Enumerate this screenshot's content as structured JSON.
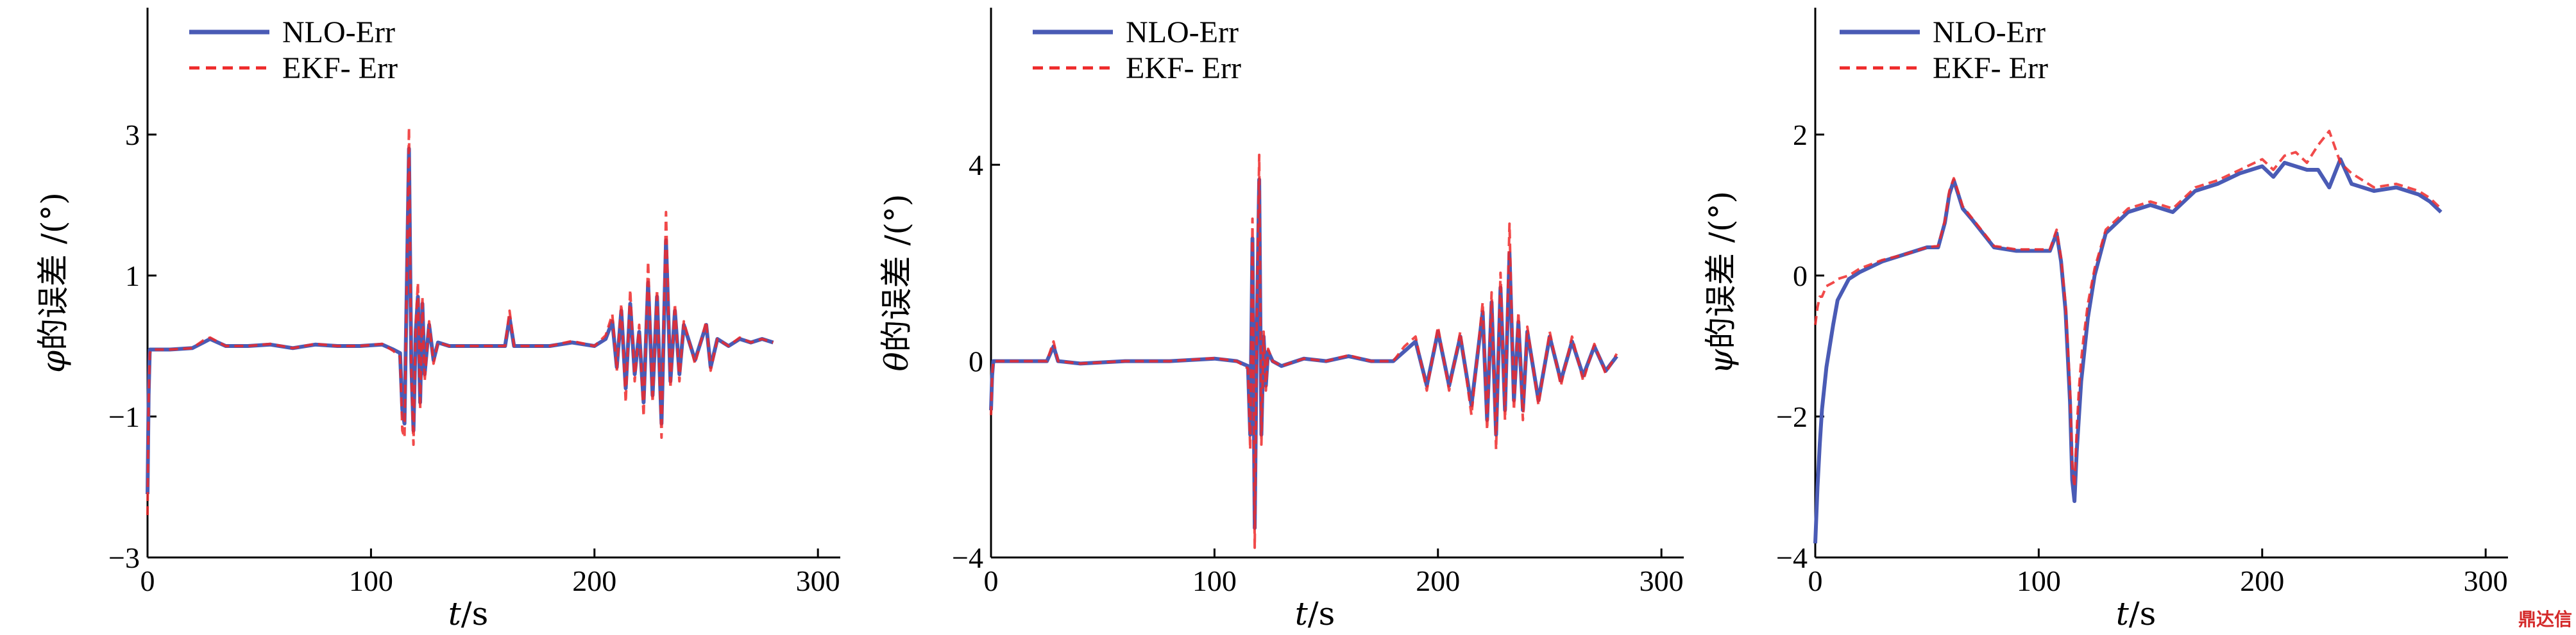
{
  "colors": {
    "nlo": "#4a5bb5",
    "ekf": "#ee2a2a"
  },
  "watermark": "鼎达信",
  "chart_data": [
    {
      "type": "line",
      "panel": "phi",
      "ylabel": "φ的误差 /(°)",
      "xlabel": "t/s",
      "xlim": [
        0,
        310
      ],
      "ylim": [
        -3,
        4.8
      ],
      "xticks": [
        0,
        100,
        200,
        300
      ],
      "yticks": [
        -3,
        -1,
        1,
        3
      ],
      "legend": {
        "position": "top-left",
        "entries": [
          "NLO-Err",
          "EKF- Err"
        ]
      },
      "series": [
        {
          "name": "NLO-Err",
          "style": "solid",
          "x": [
            0,
            0.5,
            1,
            2,
            5,
            10,
            20,
            25,
            28,
            35,
            45,
            55,
            65,
            75,
            85,
            95,
            105,
            110,
            113,
            114,
            115,
            116,
            117,
            118,
            119,
            120,
            121,
            122,
            123,
            124,
            126,
            128,
            130,
            135,
            145,
            155,
            160,
            162,
            164,
            170,
            180,
            190,
            200,
            205,
            208,
            210,
            212,
            214,
            216,
            218,
            220,
            222,
            224,
            226,
            228,
            230,
            232,
            234,
            236,
            238,
            240,
            245,
            250,
            252,
            255,
            260,
            265,
            270,
            275,
            280
          ],
          "y": [
            -2.1,
            -0.7,
            -0.05,
            -0.05,
            -0.05,
            -0.05,
            -0.03,
            0.05,
            0.1,
            0.0,
            0.0,
            0.02,
            -0.03,
            0.02,
            0.0,
            0.0,
            0.02,
            -0.05,
            -0.1,
            -0.9,
            -1.1,
            0.8,
            2.8,
            -0.2,
            -1.2,
            0.2,
            0.7,
            -0.8,
            0.6,
            -0.4,
            0.3,
            -0.2,
            0.05,
            0.0,
            0.0,
            0.0,
            0.0,
            0.4,
            0.0,
            0.0,
            0.0,
            0.05,
            0.0,
            0.1,
            0.35,
            -0.3,
            0.5,
            -0.6,
            0.6,
            -0.4,
            0.2,
            -0.8,
            0.9,
            -0.7,
            0.7,
            -1.1,
            1.5,
            -0.5,
            0.5,
            -0.4,
            0.3,
            -0.2,
            0.3,
            -0.3,
            0.1,
            0.0,
            0.1,
            0.05,
            0.1,
            0.05
          ]
        },
        {
          "name": "EKF- Err",
          "style": "dashed",
          "x": [
            0,
            0.5,
            1,
            2,
            5,
            10,
            20,
            25,
            28,
            35,
            45,
            55,
            65,
            75,
            85,
            95,
            105,
            110,
            113,
            114,
            115,
            116,
            117,
            118,
            119,
            120,
            121,
            122,
            123,
            124,
            126,
            128,
            130,
            135,
            145,
            155,
            160,
            162,
            164,
            170,
            180,
            190,
            200,
            205,
            208,
            210,
            212,
            214,
            216,
            218,
            220,
            222,
            224,
            226,
            228,
            230,
            232,
            234,
            236,
            238,
            240,
            245,
            250,
            252,
            255,
            260,
            265,
            270,
            275,
            280
          ],
          "y": [
            -2.4,
            -0.8,
            -0.1,
            -0.05,
            -0.05,
            -0.05,
            -0.03,
            0.08,
            0.12,
            0.0,
            0.0,
            0.03,
            -0.03,
            0.03,
            0.0,
            0.0,
            0.03,
            -0.07,
            -0.15,
            -1.2,
            -1.3,
            0.9,
            3.1,
            -0.3,
            -1.4,
            0.3,
            0.9,
            -0.9,
            0.7,
            -0.5,
            0.35,
            -0.25,
            0.05,
            0.0,
            0.0,
            0.0,
            0.0,
            0.5,
            0.0,
            0.0,
            0.0,
            0.07,
            0.0,
            0.15,
            0.45,
            -0.35,
            0.6,
            -0.8,
            0.8,
            -0.5,
            0.3,
            -1.0,
            1.2,
            -0.8,
            0.8,
            -1.3,
            1.9,
            -0.6,
            0.6,
            -0.5,
            0.35,
            -0.25,
            0.35,
            -0.35,
            0.1,
            0.0,
            0.12,
            0.05,
            0.1,
            0.05
          ]
        }
      ]
    },
    {
      "type": "line",
      "panel": "theta",
      "ylabel": "θ的误差 /(°)",
      "xlabel": "t/s",
      "xlim": [
        0,
        310
      ],
      "ylim": [
        -4,
        7.2
      ],
      "xticks": [
        0,
        100,
        200,
        300
      ],
      "yticks": [
        -4,
        0,
        4
      ],
      "legend": {
        "position": "top-left",
        "entries": [
          "NLO-Err",
          "EKF- Err"
        ]
      },
      "series": [
        {
          "name": "NLO-Err",
          "style": "solid",
          "x": [
            0,
            0.5,
            1,
            5,
            15,
            25,
            28,
            30,
            40,
            60,
            80,
            100,
            110,
            115,
            116,
            117,
            118,
            119,
            120,
            121,
            122,
            123,
            124,
            126,
            130,
            140,
            150,
            160,
            170,
            180,
            185,
            190,
            195,
            200,
            205,
            210,
            215,
            220,
            222,
            224,
            226,
            228,
            230,
            232,
            234,
            236,
            238,
            240,
            245,
            250,
            255,
            260,
            265,
            270,
            275,
            280
          ],
          "y": [
            -1.0,
            -0.3,
            0.0,
            0.0,
            0.0,
            0.0,
            0.3,
            0.0,
            -0.05,
            0.0,
            0.0,
            0.05,
            0.0,
            -0.1,
            -1.5,
            2.5,
            -3.4,
            0.8,
            3.7,
            -1.5,
            0.5,
            -0.5,
            0.2,
            0.0,
            -0.1,
            0.05,
            0.0,
            0.1,
            0.0,
            0.0,
            0.2,
            0.4,
            -0.5,
            0.6,
            -0.5,
            0.5,
            -0.9,
            1.0,
            -1.2,
            1.2,
            -1.5,
            1.5,
            -1.0,
            2.2,
            -0.8,
            0.8,
            -1.0,
            0.6,
            -0.8,
            0.5,
            -0.4,
            0.4,
            -0.3,
            0.3,
            -0.2,
            0.1
          ]
        },
        {
          "name": "EKF- Err",
          "style": "dashed",
          "x": [
            0,
            0.5,
            1,
            5,
            15,
            25,
            28,
            30,
            40,
            60,
            80,
            100,
            110,
            115,
            116,
            117,
            118,
            119,
            120,
            121,
            122,
            123,
            124,
            126,
            130,
            140,
            150,
            160,
            170,
            180,
            185,
            190,
            195,
            200,
            205,
            210,
            215,
            220,
            222,
            224,
            226,
            228,
            230,
            232,
            234,
            236,
            238,
            240,
            245,
            250,
            255,
            260,
            265,
            270,
            275,
            280
          ],
          "y": [
            -1.1,
            -0.3,
            0.0,
            0.0,
            0.0,
            0.0,
            0.4,
            0.0,
            -0.05,
            0.0,
            0.0,
            0.06,
            0.0,
            -0.15,
            -1.8,
            2.9,
            -3.8,
            1.0,
            4.2,
            -1.7,
            0.6,
            -0.6,
            0.25,
            0.0,
            -0.1,
            0.05,
            0.0,
            0.12,
            0.0,
            0.0,
            0.3,
            0.5,
            -0.6,
            0.7,
            -0.6,
            0.6,
            -1.1,
            1.2,
            -1.4,
            1.4,
            -1.8,
            1.8,
            -1.2,
            2.8,
            -1.0,
            1.0,
            -1.2,
            0.7,
            -0.9,
            0.6,
            -0.5,
            0.5,
            -0.4,
            0.35,
            -0.25,
            0.15
          ]
        }
      ]
    },
    {
      "type": "line",
      "panel": "psi",
      "ylabel": "ψ的误差 /(°)",
      "xlabel": "t/s",
      "xlim": [
        0,
        310
      ],
      "ylim": [
        -4,
        3.8
      ],
      "xticks": [
        0,
        100,
        200,
        300
      ],
      "yticks": [
        -4,
        -2,
        0,
        2
      ],
      "legend": {
        "position": "top-left",
        "entries": [
          "NLO-Err",
          "EKF- Err"
        ]
      },
      "series": [
        {
          "name": "NLO-Err",
          "style": "solid",
          "x": [
            0,
            1,
            2,
            3,
            5,
            8,
            10,
            15,
            20,
            30,
            40,
            50,
            55,
            58,
            60,
            62,
            64,
            66,
            70,
            80,
            90,
            100,
            105,
            108,
            110,
            112,
            114,
            115,
            116,
            117,
            118,
            119,
            120,
            122,
            125,
            130,
            140,
            150,
            160,
            170,
            180,
            190,
            200,
            205,
            210,
            215,
            220,
            225,
            230,
            235,
            240,
            250,
            260,
            270,
            275,
            280
          ],
          "y": [
            -3.8,
            -3.0,
            -2.4,
            -1.9,
            -1.3,
            -0.7,
            -0.35,
            -0.05,
            0.05,
            0.2,
            0.3,
            0.4,
            0.4,
            0.75,
            1.15,
            1.35,
            1.15,
            0.95,
            0.8,
            0.4,
            0.35,
            0.35,
            0.35,
            0.6,
            0.2,
            -0.5,
            -1.8,
            -2.9,
            -3.2,
            -2.5,
            -2.0,
            -1.5,
            -1.2,
            -0.6,
            0.0,
            0.6,
            0.9,
            1.0,
            0.9,
            1.2,
            1.3,
            1.45,
            1.55,
            1.4,
            1.6,
            1.55,
            1.5,
            1.5,
            1.25,
            1.65,
            1.3,
            1.2,
            1.25,
            1.15,
            1.05,
            0.9
          ]
        },
        {
          "name": "EKF- Err",
          "style": "dashed",
          "x": [
            0,
            1,
            2,
            3,
            5,
            8,
            10,
            15,
            20,
            30,
            40,
            50,
            55,
            58,
            60,
            62,
            64,
            66,
            70,
            80,
            90,
            100,
            105,
            108,
            110,
            112,
            114,
            115,
            116,
            117,
            118,
            119,
            120,
            122,
            125,
            130,
            140,
            150,
            160,
            170,
            180,
            190,
            200,
            205,
            210,
            215,
            220,
            225,
            230,
            235,
            240,
            250,
            260,
            270,
            275,
            280
          ],
          "y": [
            -0.7,
            -0.45,
            -0.3,
            -0.3,
            -0.15,
            -0.1,
            -0.05,
            0.0,
            0.1,
            0.22,
            0.3,
            0.4,
            0.42,
            0.78,
            1.2,
            1.38,
            1.18,
            0.98,
            0.82,
            0.42,
            0.37,
            0.37,
            0.37,
            0.65,
            0.25,
            -0.4,
            -1.6,
            -2.7,
            -3.0,
            -2.2,
            -1.6,
            -1.2,
            -0.9,
            -0.4,
            0.1,
            0.65,
            0.95,
            1.05,
            0.95,
            1.25,
            1.35,
            1.5,
            1.65,
            1.5,
            1.7,
            1.75,
            1.6,
            1.85,
            2.05,
            1.6,
            1.45,
            1.25,
            1.3,
            1.2,
            1.1,
            0.95
          ]
        }
      ]
    }
  ]
}
